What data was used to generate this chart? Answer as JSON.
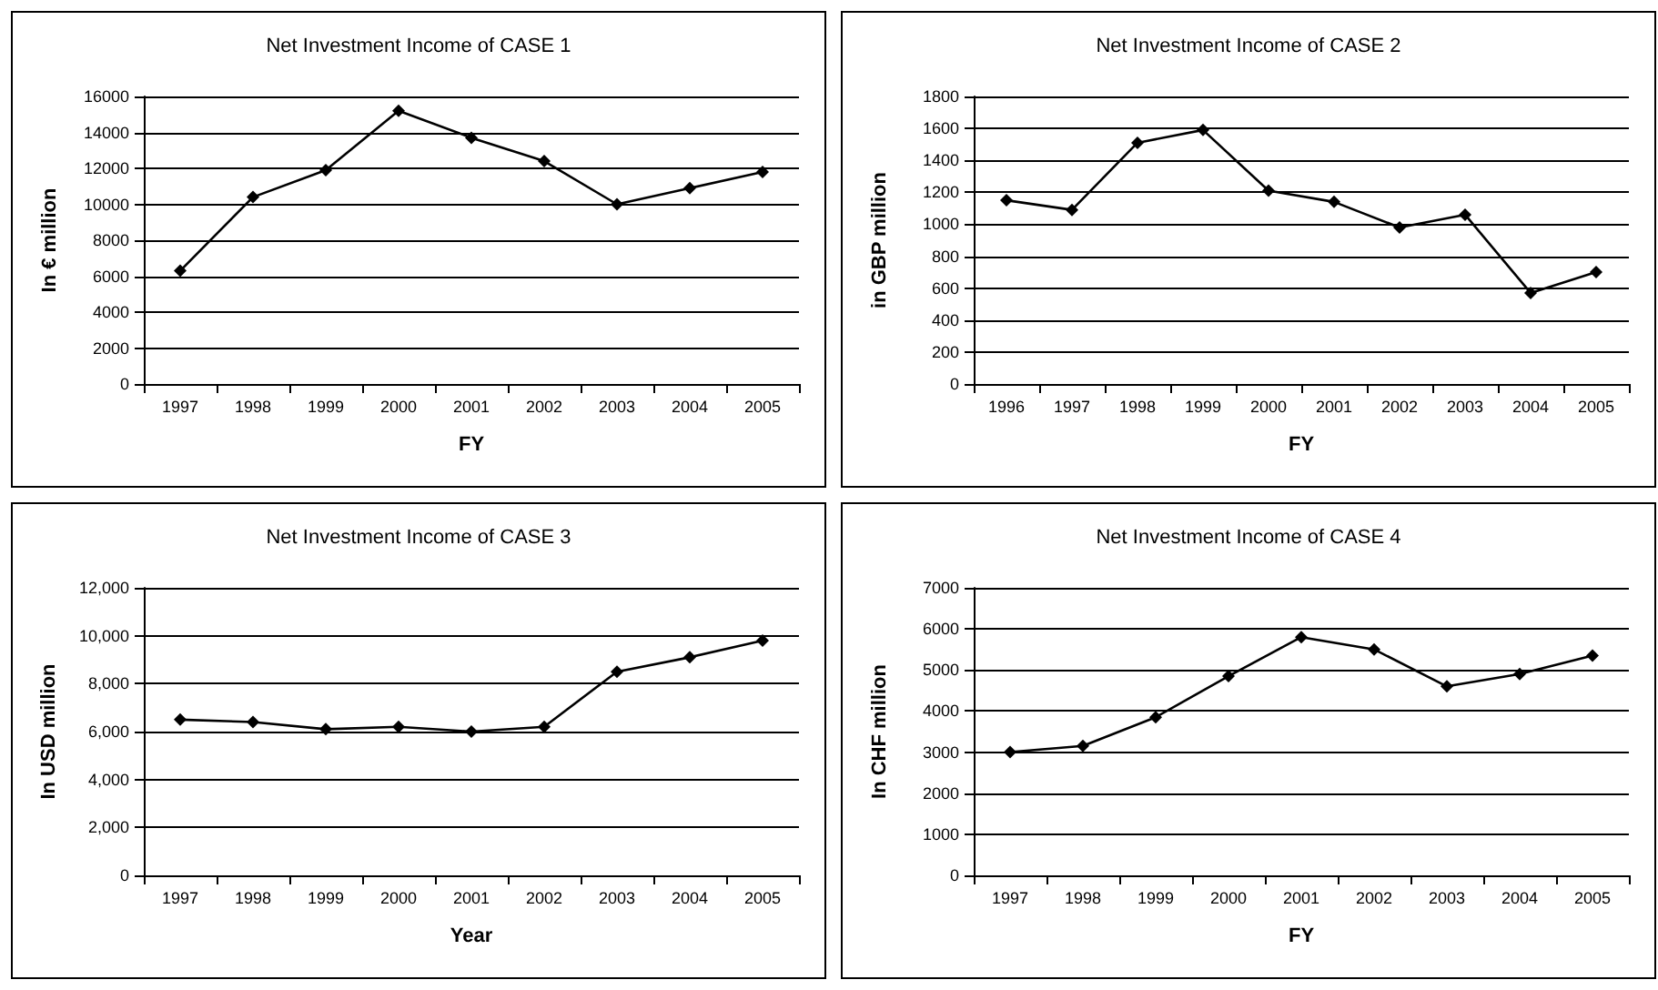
{
  "chart_data": [
    {
      "type": "line",
      "title": "Net Investment Income of CASE 1",
      "xlabel": "FY",
      "ylabel": "In € million",
      "categories": [
        "1997",
        "1998",
        "1999",
        "2000",
        "2001",
        "2002",
        "2003",
        "2004",
        "2005"
      ],
      "series": [
        {
          "color": "#000000",
          "values": [
            6300,
            10400,
            11900,
            15200,
            13700,
            12400,
            10000,
            10900,
            11800
          ]
        }
      ],
      "ylim": [
        0,
        16000
      ],
      "yticks": [
        0,
        2000,
        4000,
        6000,
        8000,
        10000,
        12000,
        14000,
        16000
      ],
      "grid": "y",
      "marker": "diamond"
    },
    {
      "type": "line",
      "title": "Net Investment Income of CASE 2",
      "xlabel": "FY",
      "ylabel": "in GBP million",
      "categories": [
        "1996",
        "1997",
        "1998",
        "1999",
        "2000",
        "2001",
        "2002",
        "2003",
        "2004",
        "2005"
      ],
      "series": [
        {
          "color": "#000000",
          "values": [
            1150,
            1090,
            1510,
            1590,
            1210,
            1140,
            980,
            1060,
            570,
            700
          ]
        }
      ],
      "ylim": [
        0,
        1800
      ],
      "yticks": [
        0,
        200,
        400,
        600,
        800,
        1000,
        1200,
        1400,
        1600,
        1800
      ],
      "grid": "y",
      "marker": "diamond"
    },
    {
      "type": "line",
      "title": "Net Investment Income of CASE 3",
      "xlabel": "Year",
      "ylabel": "In USD million",
      "categories": [
        "1997",
        "1998",
        "1999",
        "2000",
        "2001",
        "2002",
        "2003",
        "2004",
        "2005"
      ],
      "series": [
        {
          "color": "#000000",
          "values": [
            6500,
            6400,
            6100,
            6200,
            6000,
            6200,
            8500,
            9100,
            9800
          ]
        }
      ],
      "ylim": [
        0,
        12000
      ],
      "yticks": [
        0,
        {
          "value": 2000,
          "label": "2,000"
        },
        {
          "value": 4000,
          "label": "4,000"
        },
        {
          "value": 6000,
          "label": "6,000"
        },
        {
          "value": 8000,
          "label": "8,000"
        },
        {
          "value": 10000,
          "label": "10,000"
        },
        {
          "value": 12000,
          "label": "12,000"
        }
      ],
      "grid": "y",
      "marker": "diamond"
    },
    {
      "type": "line",
      "title": "Net Investment Income of CASE 4",
      "xlabel": "FY",
      "ylabel": "In CHF million",
      "categories": [
        "1997",
        "1998",
        "1999",
        "2000",
        "2001",
        "2002",
        "2003",
        "2004",
        "2005"
      ],
      "series": [
        {
          "color": "#000000",
          "values": [
            3000,
            3150,
            3850,
            4850,
            5800,
            5500,
            4600,
            4900,
            5350
          ]
        }
      ],
      "ylim": [
        0,
        7000
      ],
      "yticks": [
        0,
        1000,
        2000,
        3000,
        4000,
        5000,
        6000,
        7000
      ],
      "grid": "y",
      "marker": "diamond"
    }
  ]
}
